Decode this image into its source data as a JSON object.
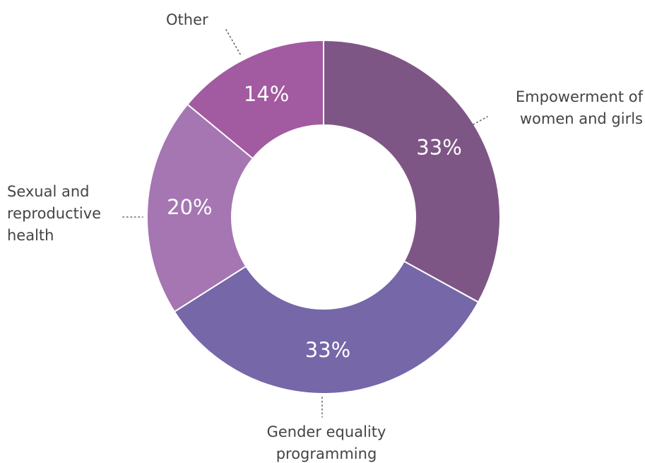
{
  "chart_data": {
    "type": "donut",
    "categories": [
      "Empowerment of women and girls",
      "Gender equality programming",
      "Sexual and reproductive health",
      "Other"
    ],
    "values": [
      33,
      33,
      20,
      14
    ],
    "value_labels": [
      "33%",
      "33%",
      "20%",
      "14%"
    ],
    "colors": [
      "#7e5685",
      "#7567a8",
      "#a576b2",
      "#a25aa0"
    ]
  }
}
